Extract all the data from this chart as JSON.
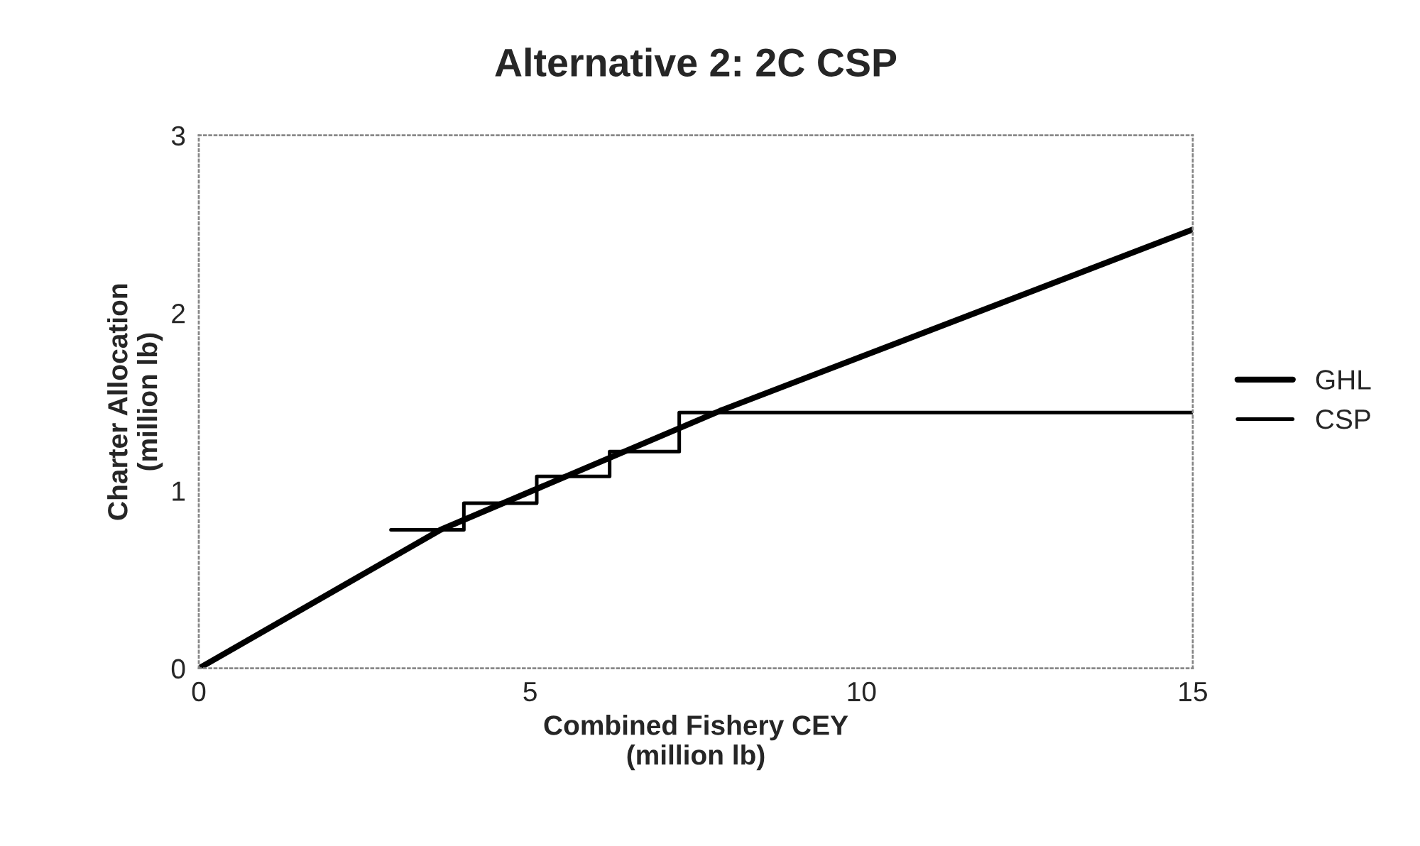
{
  "chart_data": {
    "type": "line",
    "title": "Alternative 2: 2C CSP",
    "xlabel": "Combined Fishery CEY\n(million lb)",
    "ylabel": "Charter Allocation\n(million lb)",
    "xlim": [
      0,
      15
    ],
    "xticks": [
      0,
      5,
      10,
      15
    ],
    "ylim": [
      0,
      3
    ],
    "yticks": [
      0,
      1,
      2,
      3
    ],
    "legend": "right",
    "grid": false,
    "marker": "none",
    "line_style": "solid",
    "series": [
      {
        "name": "GHL",
        "color": "#000000",
        "x": [
          0,
          3.65,
          7.87,
          15
        ],
        "values": [
          0,
          0.78,
          1.45,
          2.47
        ]
      },
      {
        "name": "CSP",
        "type": "step",
        "color": "#000000",
        "x": [
          2.9,
          4.0,
          5.1,
          6.2,
          7.25,
          15
        ],
        "values": [
          0.78,
          0.93,
          1.08,
          1.22,
          1.44,
          1.44
        ]
      }
    ]
  }
}
